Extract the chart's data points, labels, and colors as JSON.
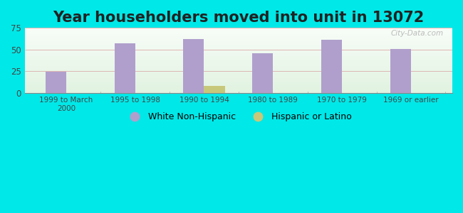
{
  "title": "Year householders moved into unit in 13072",
  "categories": [
    "1999 to March\n2000",
    "1995 to 1998",
    "1990 to 1994",
    "1980 to 1989",
    "1970 to 1979",
    "1969 or earlier"
  ],
  "white_non_hispanic": [
    24,
    57,
    62,
    46,
    61,
    51
  ],
  "hispanic_or_latino": [
    0,
    0,
    8,
    0,
    0,
    0
  ],
  "bar_color_white": "#b09fcc",
  "bar_color_hispanic": "#c8c87a",
  "background_outer": "#00e8e8",
  "ylim": [
    0,
    75
  ],
  "yticks": [
    0,
    25,
    50,
    75
  ],
  "bar_width": 0.3,
  "title_fontsize": 15,
  "legend_labels": [
    "White Non-Hispanic",
    "Hispanic or Latino"
  ],
  "watermark": "City-Data.com"
}
